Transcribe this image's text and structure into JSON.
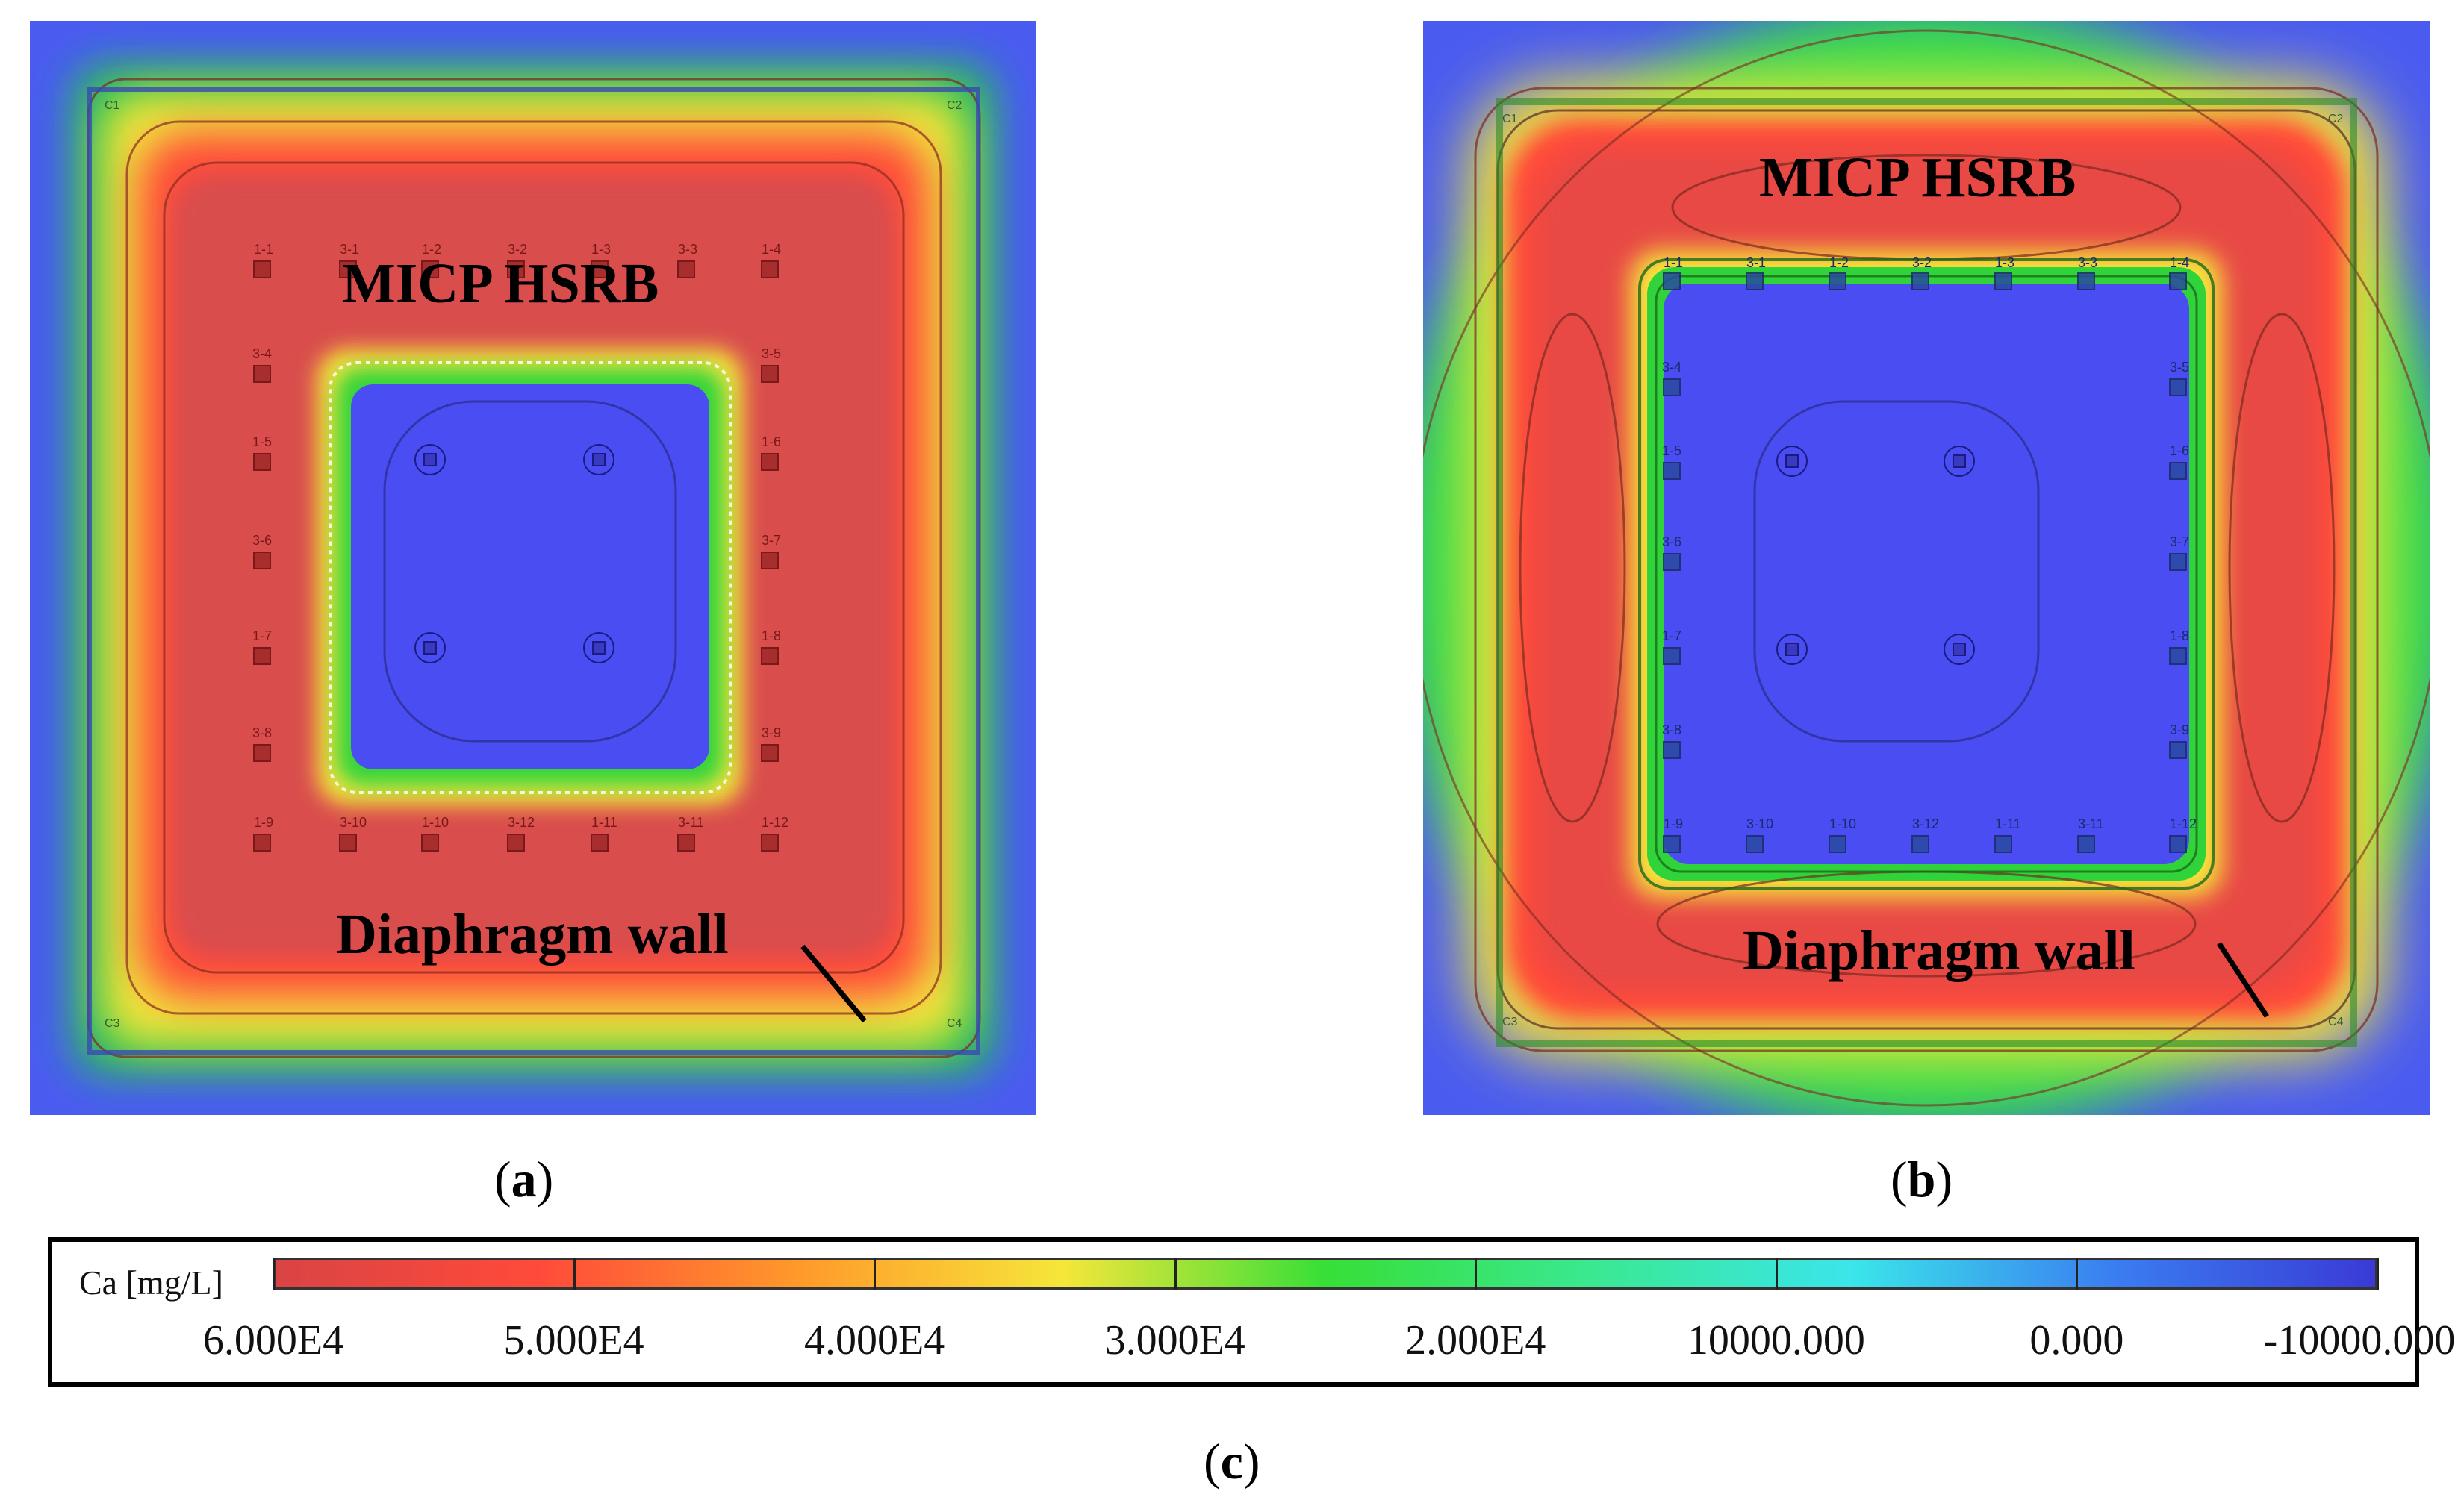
{
  "panels": [
    {
      "id": "a",
      "caption_letter": "a",
      "label_top": "MICP HSRB",
      "label_bottom": "Diaphragm wall",
      "well_labels_top": [
        "1-1",
        "3-1",
        "1-2",
        "3-2",
        "1-3",
        "3-3",
        "1-4"
      ],
      "well_labels_left": [
        "3-4",
        "1-5",
        "3-6",
        "1-7",
        "3-8"
      ],
      "well_labels_right": [
        "3-5",
        "1-6",
        "3-7",
        "1-8",
        "3-9"
      ],
      "well_labels_bottom": [
        "1-9",
        "3-10",
        "1-10",
        "3-12",
        "1-11",
        "3-11",
        "1-12"
      ],
      "corner_labels": [
        "C1",
        "C2",
        "C3",
        "C4"
      ]
    },
    {
      "id": "b",
      "caption_letter": "b",
      "label_top": "MICP HSRB",
      "label_bottom": "Diaphragm wall",
      "well_labels_top": [
        "1-1",
        "3-1",
        "1-2",
        "3-2",
        "1-3",
        "3-3",
        "1-4"
      ],
      "well_labels_left": [
        "3-4",
        "1-5",
        "3-6",
        "1-7",
        "3-8"
      ],
      "well_labels_right": [
        "3-5",
        "1-6",
        "3-7",
        "1-8",
        "3-9"
      ],
      "well_labels_bottom": [
        "1-9",
        "3-10",
        "1-10",
        "3-12",
        "1-11",
        "3-11",
        "1-12"
      ],
      "corner_labels": [
        "C1",
        "C2",
        "C3",
        "C4"
      ]
    }
  ],
  "colorbar": {
    "caption_letter": "c",
    "variable_label": "Ca [mg/L]",
    "tick_labels": [
      "6.000E4",
      "5.000E4",
      "4.000E4",
      "3.000E4",
      "2.000E4",
      "10000.000",
      "0.000",
      "-10000.000"
    ],
    "stops": [
      "#d94444",
      "#ff4a3a",
      "#ff9a2a",
      "#f6e63a",
      "#37df37",
      "#3ae890",
      "#3ae6ea",
      "#3a7ef0",
      "#3a3ad6"
    ]
  }
}
